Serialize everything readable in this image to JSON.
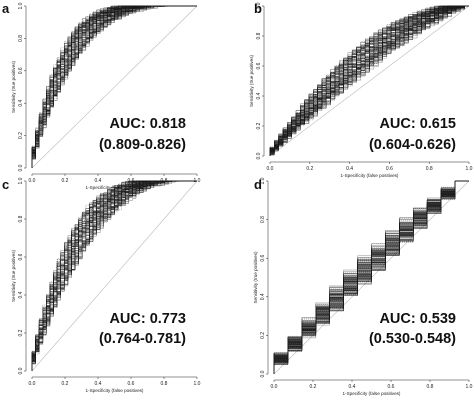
{
  "chart_data": [
    {
      "panel": "a",
      "type": "line",
      "xlabel": "1-Specificity (false positives)",
      "ylabel": "Sensitivity (true positives)",
      "xlim": [
        0,
        1
      ],
      "ylim": [
        0,
        1
      ],
      "ticks": [
        "0.0",
        "0.2",
        "0.4",
        "0.6",
        "0.8",
        "1.0"
      ],
      "annotation": [
        "AUC: 0.818",
        "(0.809-0.826)"
      ],
      "auc": 0.818,
      "auc_ci": [
        0.809,
        0.826
      ],
      "diagonal_reference": true,
      "curve_color": "#1a1a1a"
    },
    {
      "panel": "b",
      "type": "line",
      "xlabel": "1-Specificity (false positives)",
      "ylabel": "Sensitivity (true positives)",
      "xlim": [
        0,
        1
      ],
      "ylim": [
        0,
        1
      ],
      "ticks": [
        "0.0",
        "0.2",
        "0.4",
        "0.6",
        "0.8",
        "1.0"
      ],
      "annotation": [
        "AUC: 0.615",
        "(0.604-0.626)"
      ],
      "auc": 0.615,
      "auc_ci": [
        0.604,
        0.626
      ],
      "diagonal_reference": true,
      "curve_color": "#1a1a1a"
    },
    {
      "panel": "c",
      "type": "line",
      "xlabel": "1-Specificity (false positives)",
      "ylabel": "Sensitivity (true positives)",
      "xlim": [
        0,
        1
      ],
      "ylim": [
        0,
        1
      ],
      "ticks": [
        "0.0",
        "0.2",
        "0.4",
        "0.6",
        "0.8",
        "1.0"
      ],
      "annotation": [
        "AUC: 0.773",
        "(0.764-0.781)"
      ],
      "auc": 0.773,
      "auc_ci": [
        0.764,
        0.781
      ],
      "diagonal_reference": true,
      "curve_color": "#1a1a1a"
    },
    {
      "panel": "d",
      "type": "line",
      "xlabel": "1-Specificity (false positives)",
      "ylabel": "Sensitivity (true positives)",
      "xlim": [
        0,
        1
      ],
      "ylim": [
        0,
        1
      ],
      "ticks": [
        "0.0",
        "0.2",
        "0.4",
        "0.6",
        "0.8",
        "1.0"
      ],
      "annotation": [
        "AUC: 0.539",
        "(0.530-0.548)"
      ],
      "auc": 0.539,
      "auc_ci": [
        0.53,
        0.548
      ],
      "diagonal_reference": true,
      "curve_color": "#1a1a1a"
    }
  ]
}
